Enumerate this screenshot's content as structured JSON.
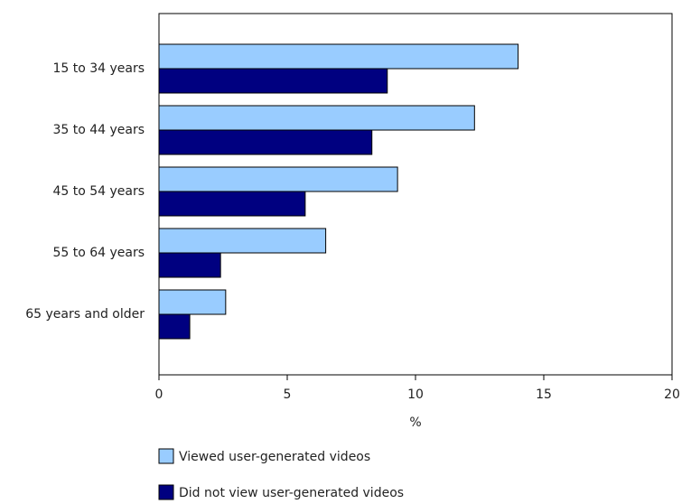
{
  "chart_data": {
    "type": "hbar",
    "categories": [
      "15 to 34 years",
      "35 to 44 years",
      "45 to 54 years",
      "55 to 64 years",
      "65 years and older"
    ],
    "series": [
      {
        "name": "Viewed user-generated videos",
        "color": "#99ccff",
        "values": [
          14.0,
          12.3,
          9.3,
          6.5,
          2.6
        ]
      },
      {
        "name": "Did not view user-generated videos",
        "color": "#000080",
        "values": [
          8.9,
          8.3,
          5.7,
          2.4,
          1.2
        ]
      }
    ],
    "x_label": "%",
    "xlim": [
      0,
      20
    ],
    "xticks": [
      0,
      5,
      10,
      15,
      20
    ],
    "grid": false
  }
}
